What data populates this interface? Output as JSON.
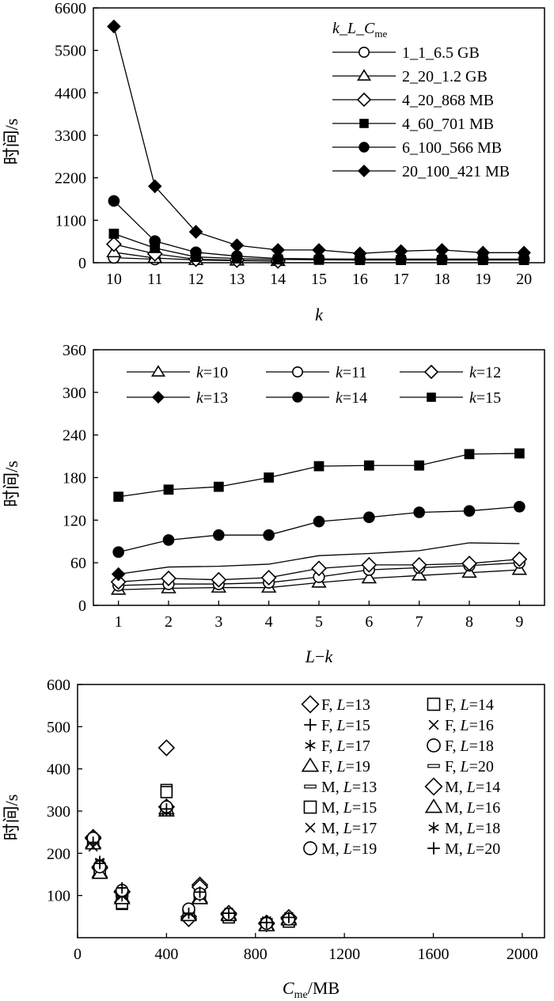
{
  "chart_data": [
    {
      "type": "line",
      "title": "",
      "xlabel": "k",
      "ylabel": "时间/s",
      "xlim": [
        9.5,
        20.5
      ],
      "ylim": [
        0,
        6600
      ],
      "xticks": [
        10,
        11,
        12,
        13,
        14,
        15,
        16,
        17,
        18,
        19,
        20
      ],
      "yticks": [
        0,
        1100,
        2200,
        3300,
        4400,
        5500,
        6600
      ],
      "legend_title": {
        "p1": "k",
        "s1": "_",
        "p2": "L",
        "s2": "_",
        "p3": "C",
        "sub": "me"
      },
      "legend_position": "top-right",
      "series": [
        {
          "name": "1_1_6.5 GB",
          "marker": "circle-open",
          "x": [
            10,
            11
          ],
          "y": [
            130,
            90
          ]
        },
        {
          "name": "2_20_1.2 GB",
          "marker": "triangle-open",
          "x": [
            10,
            11,
            12,
            13,
            14
          ],
          "y": [
            270,
            120,
            70,
            55,
            45
          ]
        },
        {
          "name": "4_20_868 MB",
          "marker": "diamond-open",
          "x": [
            10,
            11,
            12,
            13,
            14
          ],
          "y": [
            480,
            230,
            90,
            65,
            45
          ]
        },
        {
          "name": "4_60_701 MB",
          "marker": "square-filled",
          "x": [
            10,
            11,
            12,
            13,
            14,
            15,
            16,
            17,
            18,
            19,
            20
          ],
          "y": [
            750,
            380,
            150,
            110,
            85,
            75,
            70,
            70,
            70,
            70,
            70
          ]
        },
        {
          "name": "6_100_566 MB",
          "marker": "circle-filled",
          "x": [
            10,
            11,
            12,
            13,
            14,
            15,
            16,
            17,
            18,
            19,
            20
          ],
          "y": [
            1600,
            560,
            270,
            170,
            110,
            100,
            95,
            95,
            95,
            95,
            95
          ]
        },
        {
          "name": "20_100_421 MB",
          "marker": "diamond-filled",
          "x": [
            10,
            11,
            12,
            13,
            14,
            15,
            16,
            17,
            18,
            19,
            20
          ],
          "y": [
            6120,
            1980,
            800,
            450,
            330,
            330,
            240,
            300,
            330,
            260,
            260
          ]
        }
      ]
    },
    {
      "type": "line",
      "title": "",
      "xlabel": "L−k",
      "ylabel": "时间/s",
      "xlim": [
        0.5,
        9.5
      ],
      "ylim": [
        0,
        360
      ],
      "xticks": [
        1,
        2,
        3,
        4,
        5,
        6,
        7,
        8,
        9
      ],
      "yticks": [
        0,
        60,
        120,
        180,
        240,
        300,
        360
      ],
      "legend_position": "top",
      "series": [
        {
          "name": "k=10",
          "prefix": "k",
          "value": "=10",
          "marker": "triangle-open",
          "x": [
            1,
            2,
            3,
            4,
            5,
            6,
            7,
            8,
            9
          ],
          "y": [
            22,
            24,
            25,
            25,
            32,
            38,
            42,
            46,
            50
          ]
        },
        {
          "name": "k=11",
          "prefix": "k",
          "value": "=11",
          "marker": "circle-open",
          "x": [
            1,
            2,
            3,
            4,
            5,
            6,
            7,
            8,
            9
          ],
          "y": [
            28,
            30,
            30,
            32,
            40,
            50,
            53,
            56,
            60
          ]
        },
        {
          "name": "k=12",
          "prefix": "k",
          "value": "=12",
          "marker": "diamond-open",
          "x": [
            1,
            2,
            3,
            4,
            5,
            6,
            7,
            8,
            9
          ],
          "y": [
            33,
            38,
            36,
            39,
            52,
            57,
            57,
            59,
            65
          ]
        },
        {
          "name": "k=13",
          "prefix": "k",
          "value": "=13",
          "marker": "diamond-filled",
          "x": [
            1,
            2,
            3,
            4,
            5,
            6,
            7,
            8,
            9
          ],
          "y": [
            44,
            54,
            55,
            58,
            70,
            73,
            77,
            88,
            87
          ],
          "first_marker_only": true
        },
        {
          "name": "k=14",
          "prefix": "k",
          "value": "=14",
          "marker": "circle-filled",
          "x": [
            1,
            2,
            3,
            4,
            5,
            6,
            7,
            8,
            9
          ],
          "y": [
            75,
            92,
            99,
            99,
            118,
            124,
            131,
            133,
            139
          ]
        },
        {
          "name": "k=15",
          "prefix": "k",
          "value": "=15",
          "marker": "square-filled",
          "x": [
            1,
            2,
            3,
            4,
            5,
            6,
            7,
            8,
            9
          ],
          "y": [
            153,
            163,
            167,
            180,
            196,
            197,
            197,
            213,
            214
          ]
        }
      ]
    },
    {
      "type": "scatter",
      "title": "",
      "xlabel": "C_me/MB",
      "xlabel_parts": {
        "p": "C",
        "sub": "me",
        "rest": "/MB"
      },
      "ylabel": "时间/s",
      "xlim": [
        0,
        2100
      ],
      "ylim": [
        0,
        600
      ],
      "xticks": [
        0,
        400,
        800,
        1200,
        1600,
        2000
      ],
      "yticks": [
        100,
        200,
        300,
        400,
        500,
        600
      ],
      "legend_position": "top-right",
      "series": [
        {
          "name": "F, L=13",
          "pre": "F, ",
          "v": "L",
          "post": "=13",
          "marker": "diamond-open",
          "x": [
            70,
            100,
            200,
            400,
            500,
            550,
            680,
            850,
            950
          ],
          "y": [
            235,
            165,
            110,
            450,
            50,
            125,
            55,
            35,
            45
          ]
        },
        {
          "name": "F, L=14",
          "pre": "F, ",
          "v": "L",
          "post": "=14",
          "marker": "square-open",
          "x": [
            70,
            100,
            200,
            400,
            500,
            550,
            680,
            850,
            950
          ],
          "y": [
            225,
            160,
            80,
            350,
            60,
            95,
            50,
            30,
            40
          ]
        },
        {
          "name": "F, L=15",
          "pre": "F, ",
          "v": "L",
          "post": "=15",
          "marker": "plus",
          "x": [
            70,
            100,
            200,
            400,
            500,
            550,
            680,
            850,
            950
          ],
          "y": [
            230,
            175,
            115,
            310,
            55,
            110,
            55,
            35,
            45
          ]
        },
        {
          "name": "F, L=16",
          "pre": "F, ",
          "v": "L",
          "post": "=16",
          "marker": "cross",
          "x": [
            70,
            100,
            200,
            400,
            500,
            550,
            680,
            850,
            950
          ],
          "y": [
            220,
            170,
            105,
            305,
            65,
            105,
            60,
            40,
            50
          ]
        },
        {
          "name": "F, L=17",
          "pre": "F, ",
          "v": "L",
          "post": "=17",
          "marker": "asterisk",
          "x": [
            70,
            100,
            200,
            400,
            500,
            550,
            680,
            850,
            950
          ],
          "y": [
            240,
            180,
            100,
            300,
            60,
            100,
            55,
            35,
            45
          ]
        },
        {
          "name": "F, L=18",
          "pre": "F, ",
          "v": "L",
          "post": "=18",
          "marker": "circle-open",
          "x": [
            70,
            100,
            200,
            400,
            500,
            550,
            680,
            850,
            950
          ],
          "y": [
            235,
            170,
            100,
            305,
            65,
            100,
            50,
            35,
            40
          ]
        },
        {
          "name": "F, L=19",
          "pre": "F, ",
          "v": "L",
          "post": "=19",
          "marker": "triangle-open",
          "x": [
            70,
            100,
            200,
            400,
            500,
            550,
            680,
            850,
            950
          ],
          "y": [
            225,
            155,
            95,
            300,
            55,
            95,
            55,
            30,
            45
          ]
        },
        {
          "name": "F, L=20",
          "pre": "F, ",
          "v": "L",
          "post": "=20",
          "marker": "dash",
          "x": [
            70,
            100,
            200,
            400,
            500,
            550,
            680,
            850,
            950
          ],
          "y": [
            230,
            165,
            90,
            300,
            60,
            100,
            50,
            35,
            40
          ]
        },
        {
          "name": "M, L=13",
          "pre": "M, ",
          "v": "L",
          "post": "=13",
          "marker": "dash",
          "x": [
            70,
            100,
            200,
            400,
            500,
            550,
            680,
            850,
            950
          ],
          "y": [
            232,
            172,
            102,
            305,
            62,
            102,
            52,
            37,
            42
          ]
        },
        {
          "name": "M, L=14",
          "pre": "M, ",
          "v": "L",
          "post": "=14",
          "marker": "diamond-open",
          "x": [
            70,
            100,
            200,
            400,
            500,
            550,
            680,
            850,
            950
          ],
          "y": [
            238,
            168,
            108,
            310,
            45,
            120,
            58,
            33,
            48
          ]
        },
        {
          "name": "M, L=15",
          "pre": "M, ",
          "v": "L",
          "post": "=15",
          "marker": "square-open",
          "x": [
            70,
            100,
            200,
            400,
            500,
            550,
            680,
            850,
            950
          ],
          "y": [
            228,
            162,
            82,
            345,
            58,
            98,
            48,
            32,
            38
          ]
        },
        {
          "name": "M, L=16",
          "pre": "M, ",
          "v": "L",
          "post": "=16",
          "marker": "triangle-open",
          "x": [
            70,
            100,
            200,
            400,
            500,
            550,
            680,
            850,
            950
          ],
          "y": [
            222,
            152,
            92,
            305,
            52,
            92,
            52,
            28,
            42
          ]
        },
        {
          "name": "M, L=17",
          "pre": "M, ",
          "v": "L",
          "post": "=17",
          "marker": "cross",
          "x": [
            70,
            100,
            200,
            400,
            500,
            550,
            680,
            850,
            950
          ],
          "y": [
            215,
            175,
            100,
            300,
            60,
            100,
            55,
            40,
            45
          ]
        },
        {
          "name": "M, L=18",
          "pre": "M, ",
          "v": "L",
          "post": "=18",
          "marker": "asterisk",
          "x": [
            70,
            100,
            200,
            400,
            500,
            550,
            680,
            850,
            950
          ],
          "y": [
            242,
            182,
            98,
            302,
            62,
            98,
            52,
            38,
            46
          ]
        },
        {
          "name": "M, L=19",
          "pre": "M, ",
          "v": "L",
          "post": "=19",
          "marker": "circle-open",
          "x": [
            70,
            100,
            200,
            400,
            500,
            550,
            680,
            850,
            950
          ],
          "y": [
            236,
            168,
            112,
            310,
            68,
            104,
            56,
            34,
            44
          ]
        },
        {
          "name": "M, L=20",
          "pre": "M, ",
          "v": "L",
          "post": "=20",
          "marker": "plus",
          "x": [
            70,
            100,
            200,
            400,
            500,
            550,
            680,
            850,
            950
          ],
          "y": [
            226,
            176,
            118,
            305,
            58,
            108,
            58,
            36,
            48
          ]
        }
      ]
    }
  ]
}
